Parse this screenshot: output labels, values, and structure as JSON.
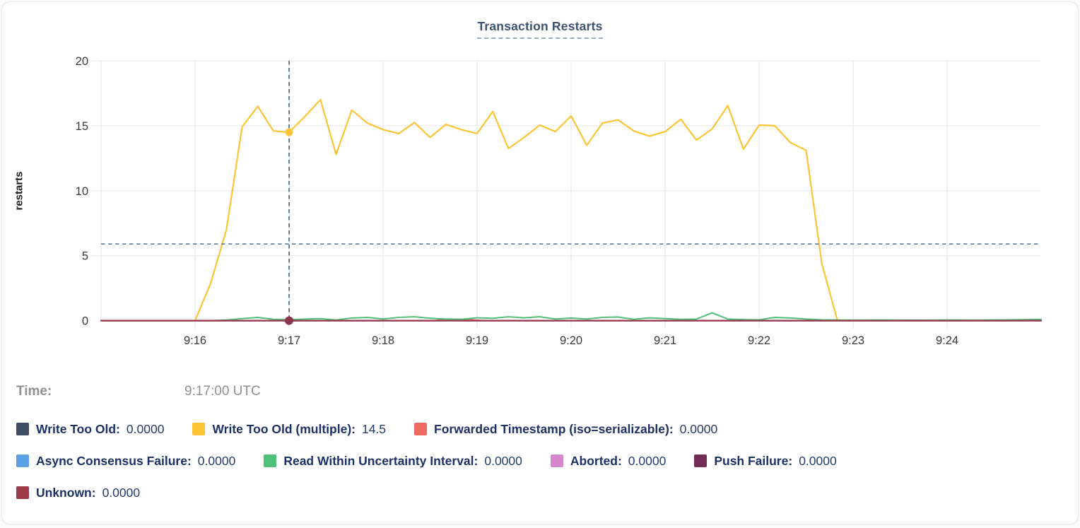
{
  "card": {
    "title": "Transaction Restarts"
  },
  "tooltip": {
    "time_label": "Time:",
    "time_value": "9:17:00 UTC"
  },
  "chart_data": {
    "type": "line",
    "title": "Transaction Restarts",
    "xlabel": "",
    "ylabel": "restarts",
    "ylim": [
      0,
      20
    ],
    "y_ticks": [
      0,
      5,
      10,
      15,
      20
    ],
    "x_ticks": [
      [
        60,
        "9:16"
      ],
      [
        120,
        "9:17"
      ],
      [
        180,
        "9:18"
      ],
      [
        240,
        "9:19"
      ],
      [
        300,
        "9:20"
      ],
      [
        360,
        "9:21"
      ],
      [
        420,
        "9:22"
      ],
      [
        480,
        "9:23"
      ],
      [
        540,
        "9:24"
      ]
    ],
    "x_domain_seconds": [
      0,
      600
    ],
    "grid": true,
    "legend_position": "bottom",
    "crosshair": {
      "time": "9:17:00 UTC",
      "x_label": "9:17",
      "x_seconds": 120,
      "hover_series": "Write Too Old (multiple)",
      "hover_value": 14.5,
      "h_line_value": 5.9,
      "line_color": "#46637e",
      "hover_dot_color": "#fdc535",
      "zero_dot_color": "#8d3550"
    },
    "series": [
      {
        "name": "Write Too Old",
        "color": "#3f4c63",
        "legend_value": "0.0000",
        "points": [
          [
            0,
            0
          ],
          [
            600,
            0
          ]
        ]
      },
      {
        "name": "Write Too Old (multiple)",
        "color": "#fdc535",
        "legend_value": "14.5",
        "points": [
          [
            60,
            0
          ],
          [
            70,
            2.9
          ],
          [
            80,
            7.0
          ],
          [
            90,
            14.9
          ],
          [
            100,
            16.5
          ],
          [
            110,
            14.6
          ],
          [
            120,
            14.5
          ],
          [
            130,
            15.7
          ],
          [
            140,
            17.0
          ],
          [
            150,
            12.8
          ],
          [
            160,
            16.2
          ],
          [
            170,
            15.2
          ],
          [
            180,
            14.7
          ],
          [
            190,
            14.4
          ],
          [
            200,
            15.25
          ],
          [
            210,
            14.1
          ],
          [
            220,
            15.1
          ],
          [
            230,
            14.7
          ],
          [
            240,
            14.4
          ],
          [
            250,
            16.1
          ],
          [
            260,
            13.25
          ],
          [
            270,
            14.1
          ],
          [
            280,
            15.05
          ],
          [
            290,
            14.55
          ],
          [
            300,
            15.75
          ],
          [
            310,
            13.5
          ],
          [
            320,
            15.2
          ],
          [
            330,
            15.45
          ],
          [
            340,
            14.6
          ],
          [
            350,
            14.2
          ],
          [
            360,
            14.55
          ],
          [
            370,
            15.5
          ],
          [
            380,
            13.9
          ],
          [
            390,
            14.75
          ],
          [
            400,
            16.55
          ],
          [
            410,
            13.2
          ],
          [
            420,
            15.05
          ],
          [
            430,
            15.0
          ],
          [
            440,
            13.7
          ],
          [
            450,
            13.1
          ],
          [
            460,
            4.4
          ],
          [
            470,
            0
          ]
        ]
      },
      {
        "name": "Forwarded Timestamp (iso=serializable)",
        "color": "#ee6a63",
        "legend_value": "0.0000",
        "points": [
          [
            0,
            0
          ],
          [
            212,
            0
          ],
          [
            222,
            0.12
          ],
          [
            232,
            0.1
          ],
          [
            242,
            0.02
          ],
          [
            250,
            0
          ],
          [
            600,
            0
          ]
        ]
      },
      {
        "name": "Async Consensus Failure",
        "color": "#5b9fe6",
        "legend_value": "0.0000",
        "points": [
          [
            0,
            0
          ],
          [
            600,
            0
          ]
        ]
      },
      {
        "name": "Read Within Uncertainty Interval",
        "color": "#50bf78",
        "legend_value": "0.0000",
        "points": [
          [
            0,
            0
          ],
          [
            70,
            0
          ],
          [
            80,
            0.05
          ],
          [
            90,
            0.15
          ],
          [
            100,
            0.25
          ],
          [
            110,
            0.1
          ],
          [
            120,
            0.07
          ],
          [
            130,
            0.12
          ],
          [
            140,
            0.15
          ],
          [
            150,
            0.05
          ],
          [
            160,
            0.2
          ],
          [
            170,
            0.25
          ],
          [
            180,
            0.12
          ],
          [
            190,
            0.25
          ],
          [
            200,
            0.3
          ],
          [
            210,
            0.18
          ],
          [
            220,
            0.12
          ],
          [
            230,
            0.1
          ],
          [
            240,
            0.22
          ],
          [
            250,
            0.18
          ],
          [
            260,
            0.3
          ],
          [
            270,
            0.22
          ],
          [
            280,
            0.3
          ],
          [
            290,
            0.12
          ],
          [
            300,
            0.2
          ],
          [
            310,
            0.12
          ],
          [
            320,
            0.25
          ],
          [
            330,
            0.28
          ],
          [
            340,
            0.1
          ],
          [
            350,
            0.22
          ],
          [
            360,
            0.15
          ],
          [
            370,
            0.1
          ],
          [
            380,
            0.12
          ],
          [
            390,
            0.6
          ],
          [
            400,
            0.12
          ],
          [
            410,
            0.08
          ],
          [
            420,
            0.06
          ],
          [
            430,
            0.25
          ],
          [
            440,
            0.2
          ],
          [
            450,
            0.12
          ],
          [
            460,
            0.06
          ],
          [
            470,
            0.05
          ],
          [
            480,
            0.04
          ],
          [
            500,
            0.05
          ],
          [
            520,
            0.03
          ],
          [
            540,
            0.05
          ],
          [
            560,
            0.04
          ],
          [
            580,
            0.06
          ],
          [
            600,
            0.1
          ]
        ]
      },
      {
        "name": "Aborted",
        "color": "#d788cd",
        "legend_value": "0.0000",
        "points": [
          [
            0,
            0
          ],
          [
            600,
            0
          ]
        ]
      },
      {
        "name": "Push Failure",
        "color": "#702c55",
        "legend_value": "0.0000",
        "points": [
          [
            0,
            0
          ],
          [
            600,
            0
          ]
        ]
      },
      {
        "name": "Unknown",
        "color": "#9c3848",
        "legend_value": "0.0000",
        "points": [
          [
            0,
            0
          ],
          [
            600,
            0
          ]
        ]
      }
    ]
  }
}
